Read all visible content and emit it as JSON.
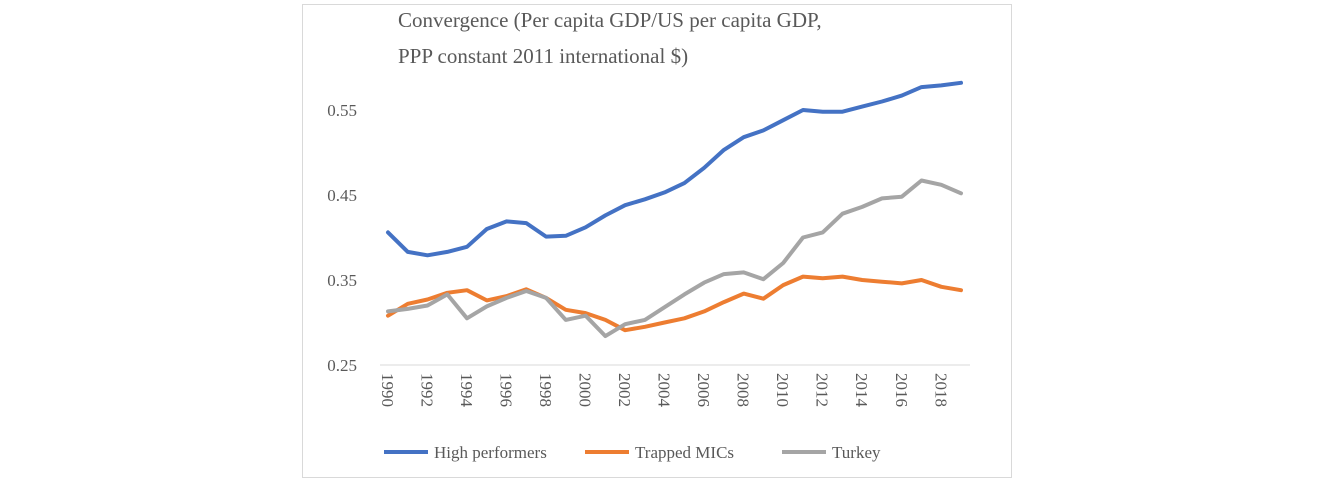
{
  "chart_data": {
    "type": "line",
    "title_lines": [
      "Convergence (Per capita GDP/US per capita GDP,",
      "PPP constant 2011 international $)"
    ],
    "x": [
      1990,
      1991,
      1992,
      1993,
      1994,
      1995,
      1996,
      1997,
      1998,
      1999,
      2000,
      2001,
      2002,
      2003,
      2004,
      2005,
      2006,
      2007,
      2008,
      2009,
      2010,
      2011,
      2012,
      2013,
      2014,
      2015,
      2016,
      2017,
      2018,
      2019
    ],
    "x_tick_labels": [
      "1990",
      "1992",
      "1994",
      "1996",
      "1998",
      "2000",
      "2002",
      "2004",
      "2006",
      "2008",
      "2010",
      "2012",
      "2014",
      "2016",
      "2018"
    ],
    "y_tick_labels": [
      "0.25",
      "0.35",
      "0.45",
      "0.55"
    ],
    "ylim": [
      0.25,
      0.6
    ],
    "grid": false,
    "legend_position": "bottom",
    "series": [
      {
        "name": "High performers",
        "color": "#4472c4",
        "values": [
          0.406,
          0.383,
          0.379,
          0.383,
          0.389,
          0.41,
          0.419,
          0.417,
          0.401,
          0.402,
          0.412,
          0.426,
          0.438,
          0.445,
          0.453,
          0.464,
          0.482,
          0.503,
          0.518,
          0.526,
          0.538,
          0.55,
          0.548,
          0.548,
          0.554,
          0.56,
          0.567,
          0.577,
          0.579,
          0.582
        ]
      },
      {
        "name": "Trapped MICs",
        "color": "#ed7d31",
        "values": [
          0.308,
          0.322,
          0.327,
          0.335,
          0.338,
          0.326,
          0.331,
          0.339,
          0.329,
          0.315,
          0.311,
          0.303,
          0.291,
          0.295,
          0.3,
          0.305,
          0.313,
          0.324,
          0.334,
          0.328,
          0.344,
          0.354,
          0.352,
          0.354,
          0.35,
          0.348,
          0.346,
          0.35,
          0.342,
          0.338
        ]
      },
      {
        "name": "Turkey",
        "color": "#a5a5a5",
        "values": [
          0.313,
          0.316,
          0.32,
          0.333,
          0.305,
          0.319,
          0.329,
          0.337,
          0.329,
          0.303,
          0.308,
          0.284,
          0.298,
          0.303,
          0.318,
          0.333,
          0.347,
          0.357,
          0.359,
          0.351,
          0.37,
          0.4,
          0.406,
          0.428,
          0.436,
          0.446,
          0.448,
          0.467,
          0.462,
          0.452
        ]
      }
    ]
  }
}
